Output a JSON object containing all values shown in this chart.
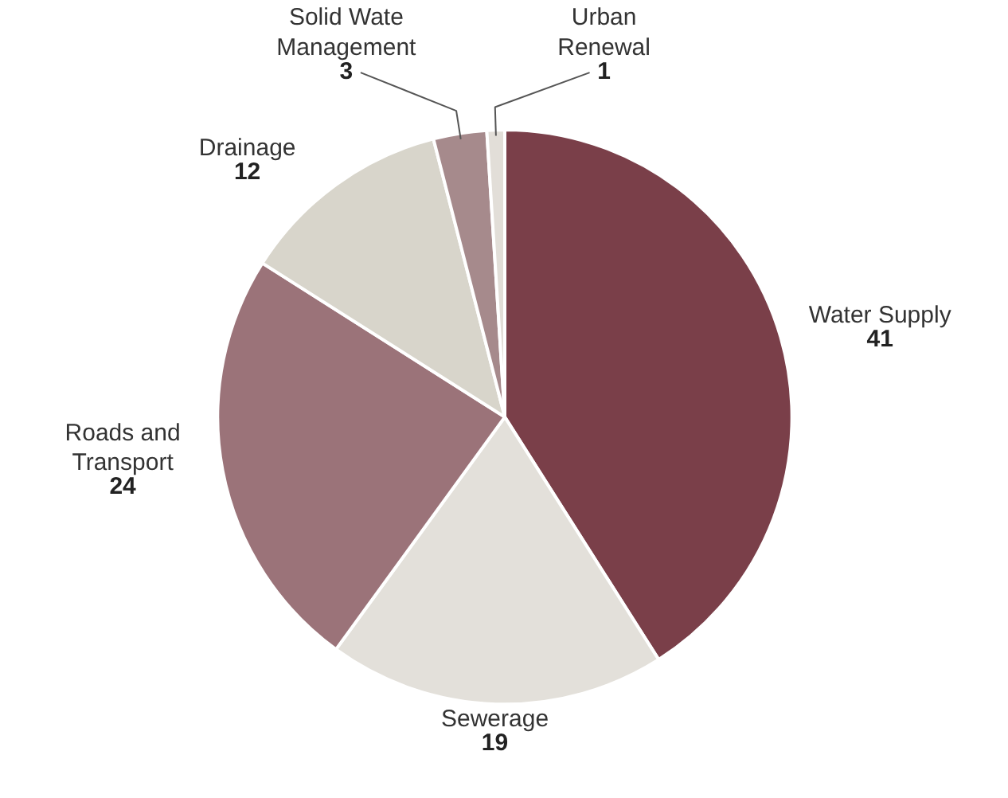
{
  "chart_data": {
    "type": "pie",
    "categories": [
      "Water Supply",
      "Sewerage",
      "Roads and\nTransport",
      "Drainage",
      "Solid Wate\nManagement",
      "Urban\nRenewal"
    ],
    "values": [
      41,
      19,
      24,
      12,
      3,
      1
    ],
    "colors": [
      "#7a3f49",
      "#e3e0da",
      "#9b7379",
      "#d8d5cb",
      "#a68a8c",
      "#e2ded8"
    ],
    "data_labels": true
  }
}
